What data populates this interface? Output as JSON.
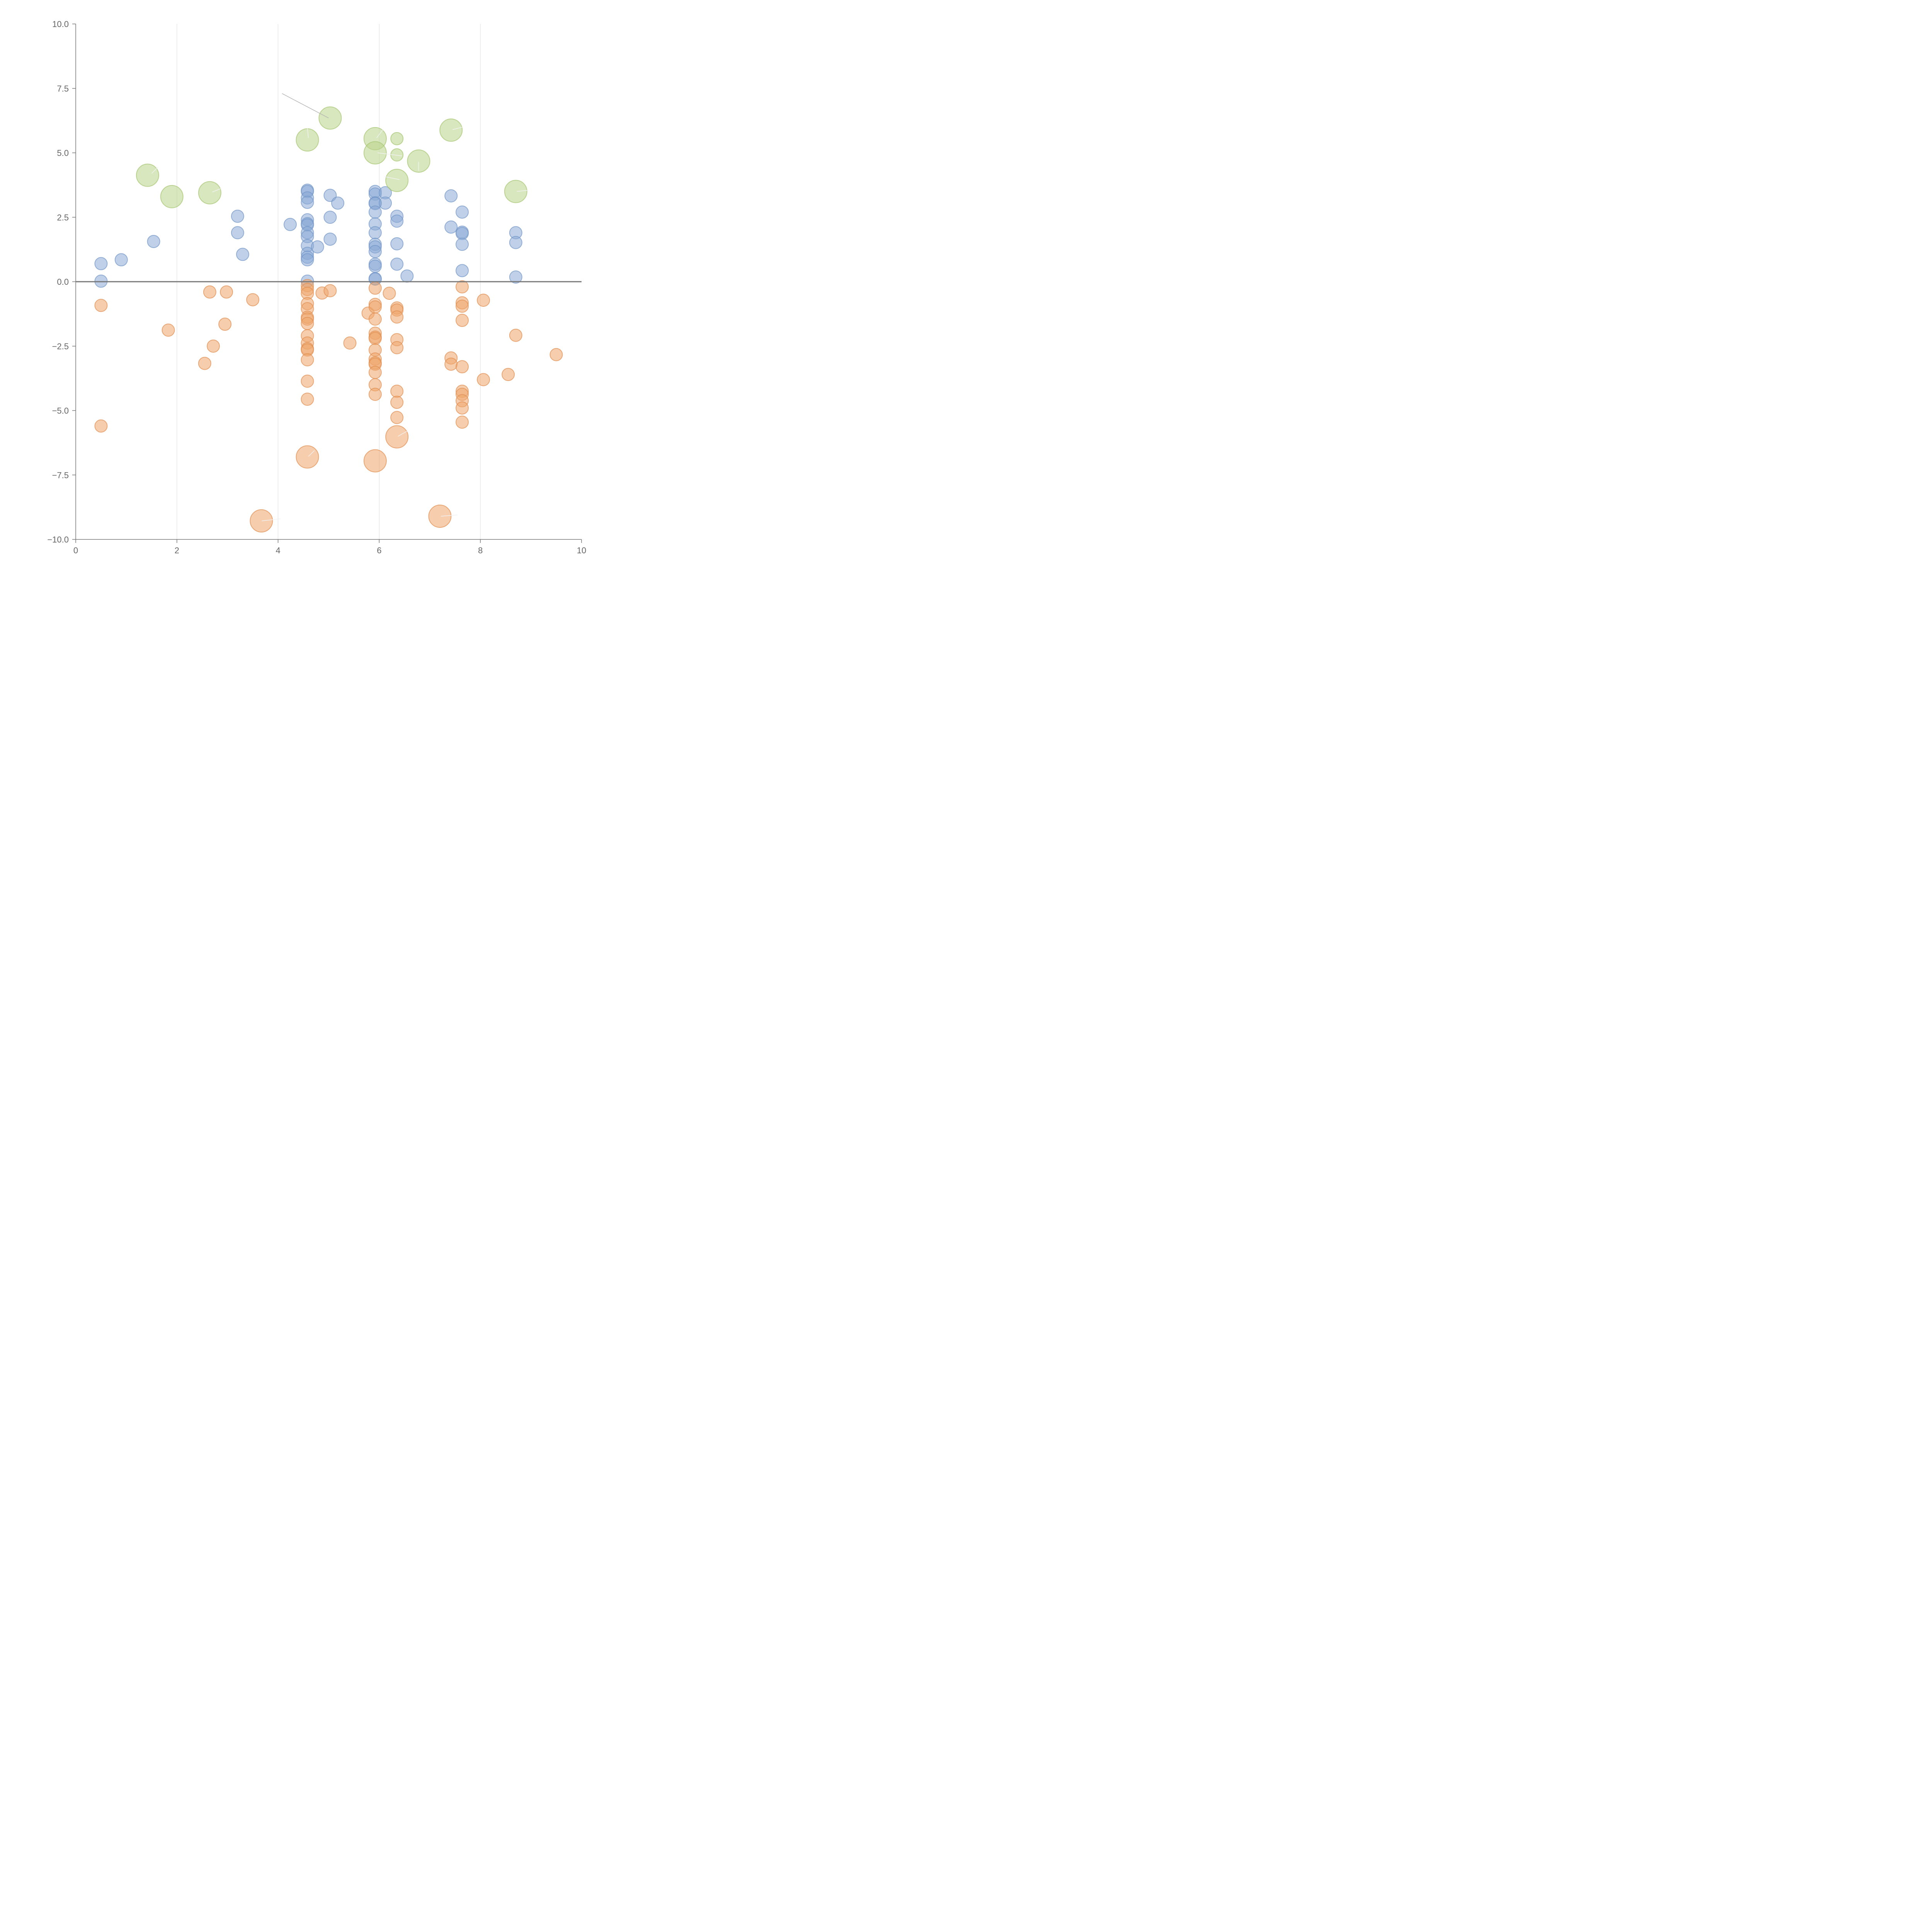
{
  "colors": {
    "blue_fill": "#8aa9d6",
    "blue_stroke": "#7295c8",
    "orange_fill": "#eea56b",
    "orange_stroke": "#e08d4f",
    "green_fill": "#b9d48a",
    "green_stroke": "#a4c46f",
    "axis": "#777777",
    "grid": "#dddddd",
    "label": "#666666"
  },
  "chart_data": {
    "type": "scatter",
    "subtype": "bubble",
    "title": "",
    "xlabel": "",
    "ylabel": "",
    "xlim": [
      0,
      10
    ],
    "ylim": [
      -10,
      10
    ],
    "x_ticks": [
      "0",
      "2",
      "4",
      "6",
      "8",
      "10"
    ],
    "y_ticks": [
      "10.0",
      "7.5",
      "5.0",
      "2.5",
      "0.0",
      "−2.5",
      "−5.0",
      "−7.5",
      "−10.0"
    ],
    "x_grid": true,
    "y_grid": false,
    "zero_line": true,
    "bubble_size_scale": {
      "small": 1,
      "large": 2
    },
    "series": [
      {
        "name": "positive",
        "color": "blue",
        "points": [
          [
            0.5,
            0.7,
            1
          ],
          [
            0.5,
            0.02,
            1
          ],
          [
            0.9,
            0.85,
            1
          ],
          [
            1.54,
            1.56,
            1
          ],
          [
            3.2,
            2.54,
            1
          ],
          [
            3.2,
            1.9,
            1
          ],
          [
            3.3,
            1.06,
            1
          ],
          [
            4.24,
            2.22,
            1
          ],
          [
            4.58,
            3.55,
            1
          ],
          [
            4.58,
            3.5,
            1
          ],
          [
            4.58,
            3.25,
            1
          ],
          [
            4.58,
            3.08,
            1
          ],
          [
            4.58,
            2.4,
            1
          ],
          [
            4.58,
            2.25,
            1
          ],
          [
            4.58,
            2.2,
            1
          ],
          [
            4.58,
            1.9,
            1
          ],
          [
            4.58,
            1.75,
            1
          ],
          [
            4.58,
            1.4,
            1
          ],
          [
            4.58,
            1.1,
            1
          ],
          [
            4.58,
            0.95,
            1
          ],
          [
            4.58,
            0.85,
            1
          ],
          [
            4.58,
            0.02,
            1
          ],
          [
            4.78,
            1.35,
            1
          ],
          [
            5.03,
            3.35,
            1
          ],
          [
            5.03,
            2.5,
            1
          ],
          [
            5.03,
            1.65,
            1
          ],
          [
            5.18,
            3.05,
            1
          ],
          [
            5.92,
            3.5,
            1
          ],
          [
            5.92,
            3.4,
            1
          ],
          [
            5.92,
            3.06,
            1
          ],
          [
            5.92,
            3.03,
            1
          ],
          [
            5.92,
            2.7,
            1
          ],
          [
            5.92,
            2.24,
            1
          ],
          [
            5.92,
            1.9,
            1
          ],
          [
            5.92,
            1.45,
            1
          ],
          [
            5.92,
            1.35,
            1
          ],
          [
            5.92,
            1.17,
            1
          ],
          [
            5.92,
            0.68,
            1
          ],
          [
            5.92,
            0.6,
            1
          ],
          [
            5.92,
            0.12,
            1
          ],
          [
            5.92,
            0.1,
            1
          ],
          [
            6.12,
            3.45,
            1
          ],
          [
            6.12,
            3.05,
            1
          ],
          [
            6.35,
            2.54,
            1
          ],
          [
            6.35,
            2.35,
            1
          ],
          [
            6.35,
            1.47,
            1
          ],
          [
            6.35,
            0.68,
            1
          ],
          [
            6.55,
            0.22,
            1
          ],
          [
            7.42,
            3.33,
            1
          ],
          [
            7.42,
            2.12,
            1
          ],
          [
            7.64,
            2.7,
            1
          ],
          [
            7.64,
            1.92,
            1
          ],
          [
            7.64,
            1.87,
            1
          ],
          [
            7.64,
            1.45,
            1
          ],
          [
            7.64,
            0.43,
            1
          ],
          [
            8.7,
            1.9,
            1
          ],
          [
            8.7,
            1.52,
            1
          ],
          [
            8.7,
            0.18,
            1
          ]
        ]
      },
      {
        "name": "negative",
        "color": "orange",
        "points": [
          [
            0.5,
            -0.92,
            1
          ],
          [
            0.5,
            -5.6,
            1
          ],
          [
            1.83,
            -1.88,
            1
          ],
          [
            2.55,
            -3.17,
            1
          ],
          [
            2.65,
            -0.4,
            1
          ],
          [
            2.72,
            -2.5,
            1
          ],
          [
            2.95,
            -1.65,
            1
          ],
          [
            2.98,
            -0.4,
            1
          ],
          [
            3.5,
            -0.7,
            1
          ],
          [
            4.58,
            -0.15,
            1
          ],
          [
            4.58,
            -0.3,
            1
          ],
          [
            4.58,
            -0.45,
            1
          ],
          [
            4.58,
            -0.85,
            1
          ],
          [
            4.58,
            -1.05,
            1
          ],
          [
            4.58,
            -1.38,
            1
          ],
          [
            4.58,
            -1.45,
            1
          ],
          [
            4.58,
            -1.62,
            1
          ],
          [
            4.58,
            -2.1,
            1
          ],
          [
            4.58,
            -2.38,
            1
          ],
          [
            4.58,
            -2.6,
            1
          ],
          [
            4.58,
            -2.65,
            1
          ],
          [
            4.58,
            -3.03,
            1
          ],
          [
            4.58,
            -3.86,
            1
          ],
          [
            4.58,
            -4.56,
            1
          ],
          [
            4.87,
            -0.44,
            1
          ],
          [
            5.03,
            -0.35,
            1
          ],
          [
            5.42,
            -2.38,
            1
          ],
          [
            5.78,
            -1.22,
            1
          ],
          [
            5.92,
            -0.25,
            1
          ],
          [
            5.92,
            -0.88,
            1
          ],
          [
            5.92,
            -0.98,
            1
          ],
          [
            5.92,
            -1.45,
            1
          ],
          [
            5.92,
            -2.0,
            1
          ],
          [
            5.92,
            -2.15,
            1
          ],
          [
            5.92,
            -2.2,
            1
          ],
          [
            5.92,
            -2.65,
            1
          ],
          [
            5.92,
            -3.0,
            1
          ],
          [
            5.92,
            -3.15,
            1
          ],
          [
            5.92,
            -3.2,
            1
          ],
          [
            5.92,
            -3.52,
            1
          ],
          [
            5.92,
            -4.0,
            1
          ],
          [
            5.92,
            -4.37,
            1
          ],
          [
            6.2,
            -0.45,
            1
          ],
          [
            6.35,
            -1.02,
            1
          ],
          [
            6.35,
            -1.1,
            1
          ],
          [
            6.35,
            -1.37,
            1
          ],
          [
            6.35,
            -2.25,
            1
          ],
          [
            6.35,
            -2.56,
            1
          ],
          [
            6.35,
            -4.25,
            1
          ],
          [
            6.35,
            -4.68,
            1
          ],
          [
            6.35,
            -5.27,
            1
          ],
          [
            7.42,
            -2.96,
            1
          ],
          [
            7.42,
            -3.2,
            1
          ],
          [
            7.64,
            -0.2,
            1
          ],
          [
            7.64,
            -0.82,
            1
          ],
          [
            7.64,
            -0.95,
            1
          ],
          [
            7.64,
            -1.5,
            1
          ],
          [
            7.64,
            -3.3,
            1
          ],
          [
            7.64,
            -4.25,
            1
          ],
          [
            7.64,
            -4.37,
            1
          ],
          [
            7.64,
            -4.62,
            1
          ],
          [
            7.64,
            -4.9,
            1
          ],
          [
            7.64,
            -5.45,
            1
          ],
          [
            8.06,
            -0.72,
            1
          ],
          [
            8.06,
            -3.8,
            1
          ],
          [
            8.55,
            -3.6,
            1
          ],
          [
            8.7,
            -2.08,
            1
          ],
          [
            9.5,
            -2.83,
            1
          ],
          [
            3.67,
            -9.28,
            2
          ],
          [
            4.58,
            -6.8,
            2
          ],
          [
            5.92,
            -6.95,
            2
          ],
          [
            6.35,
            -6.02,
            2
          ],
          [
            7.2,
            -9.1,
            2
          ]
        ]
      },
      {
        "name": "highlight",
        "color": "green",
        "points": [
          [
            1.42,
            4.13,
            2
          ],
          [
            1.9,
            3.3,
            2
          ],
          [
            2.65,
            3.45,
            2
          ],
          [
            4.58,
            5.5,
            2
          ],
          [
            5.03,
            6.35,
            2
          ],
          [
            5.92,
            5.55,
            2
          ],
          [
            5.92,
            5.0,
            2
          ],
          [
            6.35,
            5.55,
            1
          ],
          [
            6.35,
            4.92,
            1
          ],
          [
            6.35,
            3.93,
            2
          ],
          [
            6.78,
            4.68,
            2
          ],
          [
            7.42,
            5.88,
            2
          ],
          [
            8.7,
            3.5,
            2
          ]
        ]
      }
    ],
    "leader_lines": [
      {
        "x": 4.08,
        "y": 7.3,
        "x2": 5.0,
        "y2": 6.35,
        "dark": true
      },
      {
        "x": 1.5,
        "y": 4.2,
        "x2": 1.63,
        "y2": 4.45
      },
      {
        "x": 2.7,
        "y": 3.48,
        "x2": 2.88,
        "y2": 3.62
      },
      {
        "x": 4.6,
        "y": 5.58,
        "x2": 4.58,
        "y2": 5.95
      },
      {
        "x": 5.95,
        "y": 5.58,
        "x2": 6.08,
        "y2": 5.92
      },
      {
        "x": 5.97,
        "y": 5.0,
        "x2": 6.45,
        "y2": 4.88
      },
      {
        "x": 6.4,
        "y": 3.96,
        "x2": 6.1,
        "y2": 4.08
      },
      {
        "x": 6.78,
        "y": 4.65,
        "x2": 6.78,
        "y2": 4.3
      },
      {
        "x": 7.45,
        "y": 5.9,
        "x2": 7.65,
        "y2": 6.0
      },
      {
        "x": 8.72,
        "y": 3.5,
        "x2": 8.95,
        "y2": 3.55
      },
      {
        "x": 3.68,
        "y": -9.28,
        "x2": 4.05,
        "y2": -9.2
      },
      {
        "x": 4.6,
        "y": -6.78,
        "x2": 4.72,
        "y2": -6.55
      },
      {
        "x": 6.37,
        "y": -6.0,
        "x2": 6.55,
        "y2": -5.8
      },
      {
        "x": 7.22,
        "y": -9.1,
        "x2": 7.55,
        "y2": -9.05
      }
    ]
  }
}
